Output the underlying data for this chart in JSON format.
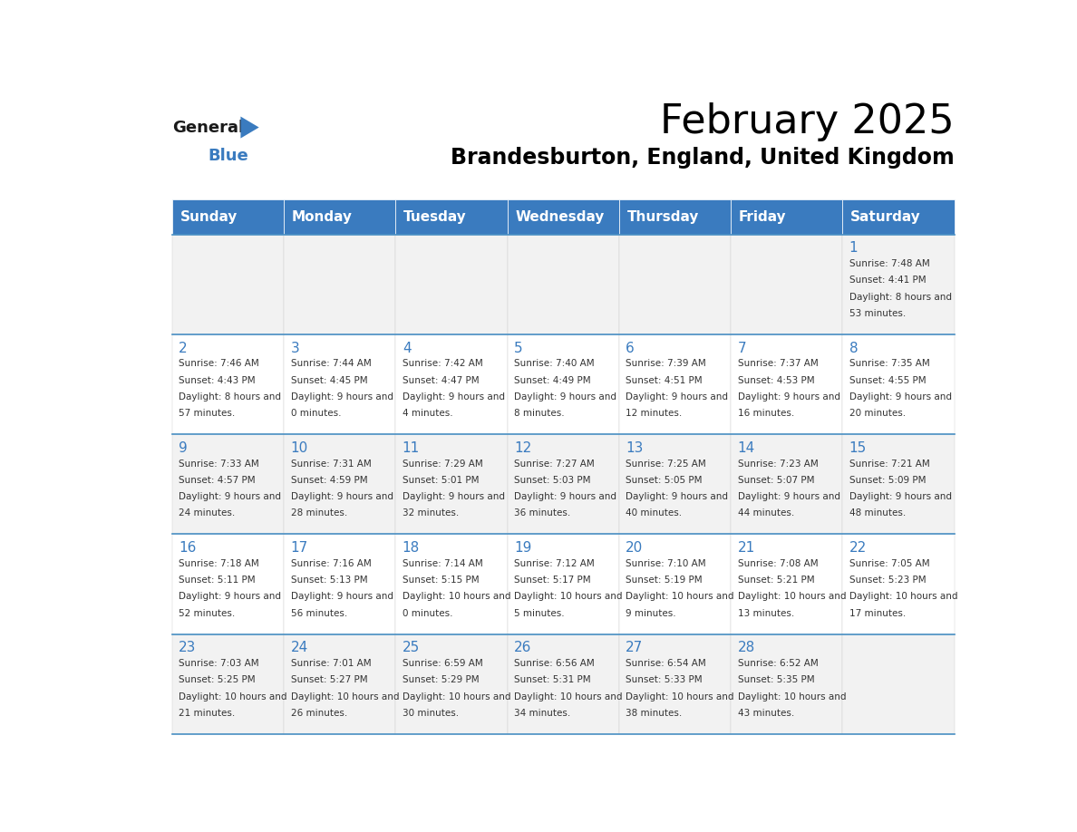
{
  "title": "February 2025",
  "subtitle": "Brandesburton, England, United Kingdom",
  "days_of_week": [
    "Sunday",
    "Monday",
    "Tuesday",
    "Wednesday",
    "Thursday",
    "Friday",
    "Saturday"
  ],
  "header_bg": "#3A7BBF",
  "header_text": "#FFFFFF",
  "row_bg_odd": "#F2F2F2",
  "row_bg_even": "#FFFFFF",
  "cell_border": "#CCCCCC",
  "title_color": "#000000",
  "subtitle_color": "#000000",
  "day_number_color": "#3A7BBF",
  "info_text_color": "#333333",
  "logo_general_color": "#1a1a1a",
  "logo_blue_color": "#3A7BBF",
  "row_separator_color": "#4A90C4",
  "calendar_data": [
    [
      {
        "day": "",
        "sunrise": "",
        "sunset": "",
        "daylight": ""
      },
      {
        "day": "",
        "sunrise": "",
        "sunset": "",
        "daylight": ""
      },
      {
        "day": "",
        "sunrise": "",
        "sunset": "",
        "daylight": ""
      },
      {
        "day": "",
        "sunrise": "",
        "sunset": "",
        "daylight": ""
      },
      {
        "day": "",
        "sunrise": "",
        "sunset": "",
        "daylight": ""
      },
      {
        "day": "",
        "sunrise": "",
        "sunset": "",
        "daylight": ""
      },
      {
        "day": "1",
        "sunrise": "7:48 AM",
        "sunset": "4:41 PM",
        "daylight": "8 hours and 53 minutes."
      }
    ],
    [
      {
        "day": "2",
        "sunrise": "7:46 AM",
        "sunset": "4:43 PM",
        "daylight": "8 hours and 57 minutes."
      },
      {
        "day": "3",
        "sunrise": "7:44 AM",
        "sunset": "4:45 PM",
        "daylight": "9 hours and 0 minutes."
      },
      {
        "day": "4",
        "sunrise": "7:42 AM",
        "sunset": "4:47 PM",
        "daylight": "9 hours and 4 minutes."
      },
      {
        "day": "5",
        "sunrise": "7:40 AM",
        "sunset": "4:49 PM",
        "daylight": "9 hours and 8 minutes."
      },
      {
        "day": "6",
        "sunrise": "7:39 AM",
        "sunset": "4:51 PM",
        "daylight": "9 hours and 12 minutes."
      },
      {
        "day": "7",
        "sunrise": "7:37 AM",
        "sunset": "4:53 PM",
        "daylight": "9 hours and 16 minutes."
      },
      {
        "day": "8",
        "sunrise": "7:35 AM",
        "sunset": "4:55 PM",
        "daylight": "9 hours and 20 minutes."
      }
    ],
    [
      {
        "day": "9",
        "sunrise": "7:33 AM",
        "sunset": "4:57 PM",
        "daylight": "9 hours and 24 minutes."
      },
      {
        "day": "10",
        "sunrise": "7:31 AM",
        "sunset": "4:59 PM",
        "daylight": "9 hours and 28 minutes."
      },
      {
        "day": "11",
        "sunrise": "7:29 AM",
        "sunset": "5:01 PM",
        "daylight": "9 hours and 32 minutes."
      },
      {
        "day": "12",
        "sunrise": "7:27 AM",
        "sunset": "5:03 PM",
        "daylight": "9 hours and 36 minutes."
      },
      {
        "day": "13",
        "sunrise": "7:25 AM",
        "sunset": "5:05 PM",
        "daylight": "9 hours and 40 minutes."
      },
      {
        "day": "14",
        "sunrise": "7:23 AM",
        "sunset": "5:07 PM",
        "daylight": "9 hours and 44 minutes."
      },
      {
        "day": "15",
        "sunrise": "7:21 AM",
        "sunset": "5:09 PM",
        "daylight": "9 hours and 48 minutes."
      }
    ],
    [
      {
        "day": "16",
        "sunrise": "7:18 AM",
        "sunset": "5:11 PM",
        "daylight": "9 hours and 52 minutes."
      },
      {
        "day": "17",
        "sunrise": "7:16 AM",
        "sunset": "5:13 PM",
        "daylight": "9 hours and 56 minutes."
      },
      {
        "day": "18",
        "sunrise": "7:14 AM",
        "sunset": "5:15 PM",
        "daylight": "10 hours and 0 minutes."
      },
      {
        "day": "19",
        "sunrise": "7:12 AM",
        "sunset": "5:17 PM",
        "daylight": "10 hours and 5 minutes."
      },
      {
        "day": "20",
        "sunrise": "7:10 AM",
        "sunset": "5:19 PM",
        "daylight": "10 hours and 9 minutes."
      },
      {
        "day": "21",
        "sunrise": "7:08 AM",
        "sunset": "5:21 PM",
        "daylight": "10 hours and 13 minutes."
      },
      {
        "day": "22",
        "sunrise": "7:05 AM",
        "sunset": "5:23 PM",
        "daylight": "10 hours and 17 minutes."
      }
    ],
    [
      {
        "day": "23",
        "sunrise": "7:03 AM",
        "sunset": "5:25 PM",
        "daylight": "10 hours and 21 minutes."
      },
      {
        "day": "24",
        "sunrise": "7:01 AM",
        "sunset": "5:27 PM",
        "daylight": "10 hours and 26 minutes."
      },
      {
        "day": "25",
        "sunrise": "6:59 AM",
        "sunset": "5:29 PM",
        "daylight": "10 hours and 30 minutes."
      },
      {
        "day": "26",
        "sunrise": "6:56 AM",
        "sunset": "5:31 PM",
        "daylight": "10 hours and 34 minutes."
      },
      {
        "day": "27",
        "sunrise": "6:54 AM",
        "sunset": "5:33 PM",
        "daylight": "10 hours and 38 minutes."
      },
      {
        "day": "28",
        "sunrise": "6:52 AM",
        "sunset": "5:35 PM",
        "daylight": "10 hours and 43 minutes."
      },
      {
        "day": "",
        "sunrise": "",
        "sunset": "",
        "daylight": ""
      }
    ]
  ]
}
